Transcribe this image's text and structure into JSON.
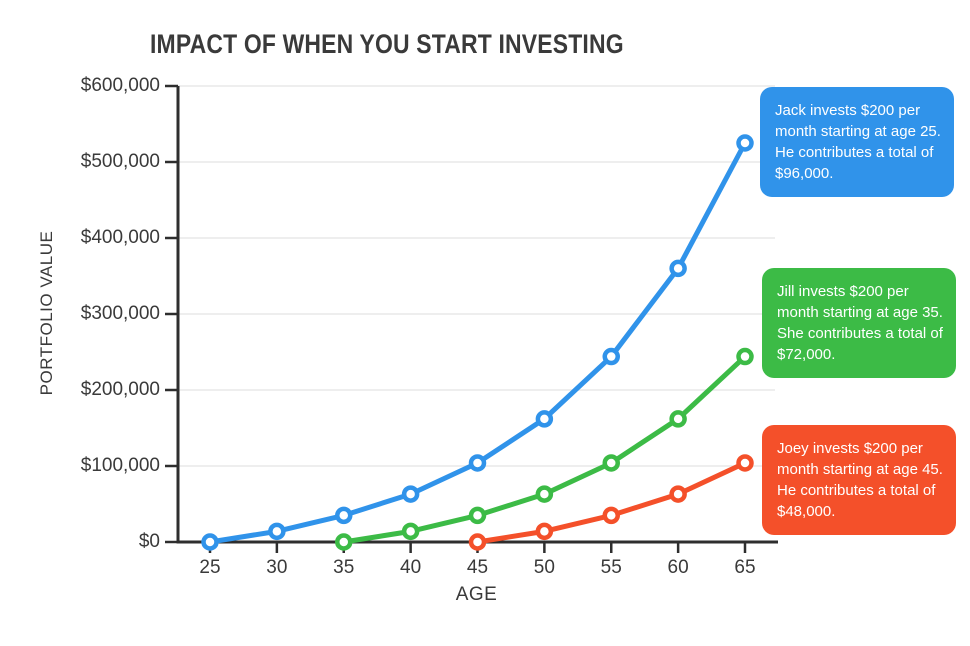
{
  "title": "IMPACT OF WHEN YOU START INVESTING",
  "chart_data": {
    "type": "line",
    "title": "IMPACT OF WHEN YOU START INVESTING",
    "xlabel": "AGE",
    "ylabel": "PORTFOLIO VALUE",
    "xlim": [
      25,
      65
    ],
    "ylim": [
      0,
      600000
    ],
    "grid": "horizontal",
    "legend": "none",
    "x_ticks": [
      25,
      30,
      35,
      40,
      45,
      50,
      55,
      60,
      65
    ],
    "y_ticks": [
      {
        "value": 600000,
        "label": "$600,000"
      },
      {
        "value": 500000,
        "label": "$500,000"
      },
      {
        "value": 400000,
        "label": "$400,000"
      },
      {
        "value": 300000,
        "label": "$300,000"
      },
      {
        "value": 200000,
        "label": "$200,000"
      },
      {
        "value": 100000,
        "label": "$100,000"
      },
      {
        "value": 0,
        "label": "$0"
      }
    ],
    "series": [
      {
        "name": "Jack",
        "color": "#3093EA",
        "ages": [
          25,
          30,
          35,
          40,
          45,
          50,
          55,
          60,
          65
        ],
        "values": [
          0,
          14000,
          35000,
          63000,
          104000,
          162000,
          244000,
          360000,
          525000
        ]
      },
      {
        "name": "Jill",
        "color": "#3CBB46",
        "ages": [
          35,
          40,
          45,
          50,
          55,
          60,
          65
        ],
        "values": [
          0,
          14000,
          35000,
          63000,
          104000,
          162000,
          244000
        ]
      },
      {
        "name": "Joey",
        "color": "#F4502A",
        "ages": [
          45,
          50,
          55,
          60,
          65
        ],
        "values": [
          0,
          14000,
          35000,
          63000,
          104000
        ]
      }
    ],
    "annotations": [
      {
        "id": "jack",
        "color": "#3093EA",
        "text": "Jack invests $200 per month starting at age 25. He contributes a total of $96,000."
      },
      {
        "id": "jill",
        "color": "#3CBB46",
        "text": "Jill invests $200 per month starting at age 35. She contributes a total of $72,000."
      },
      {
        "id": "joey",
        "color": "#F4502A",
        "text": "Joey invests $200 per month starting at age 45. He contributes a total of $48,000."
      }
    ],
    "colors": {
      "axis": "#2e2e2e",
      "grid": "#e8e8e8",
      "text": "#3a3a3a",
      "background": "#ffffff"
    }
  }
}
